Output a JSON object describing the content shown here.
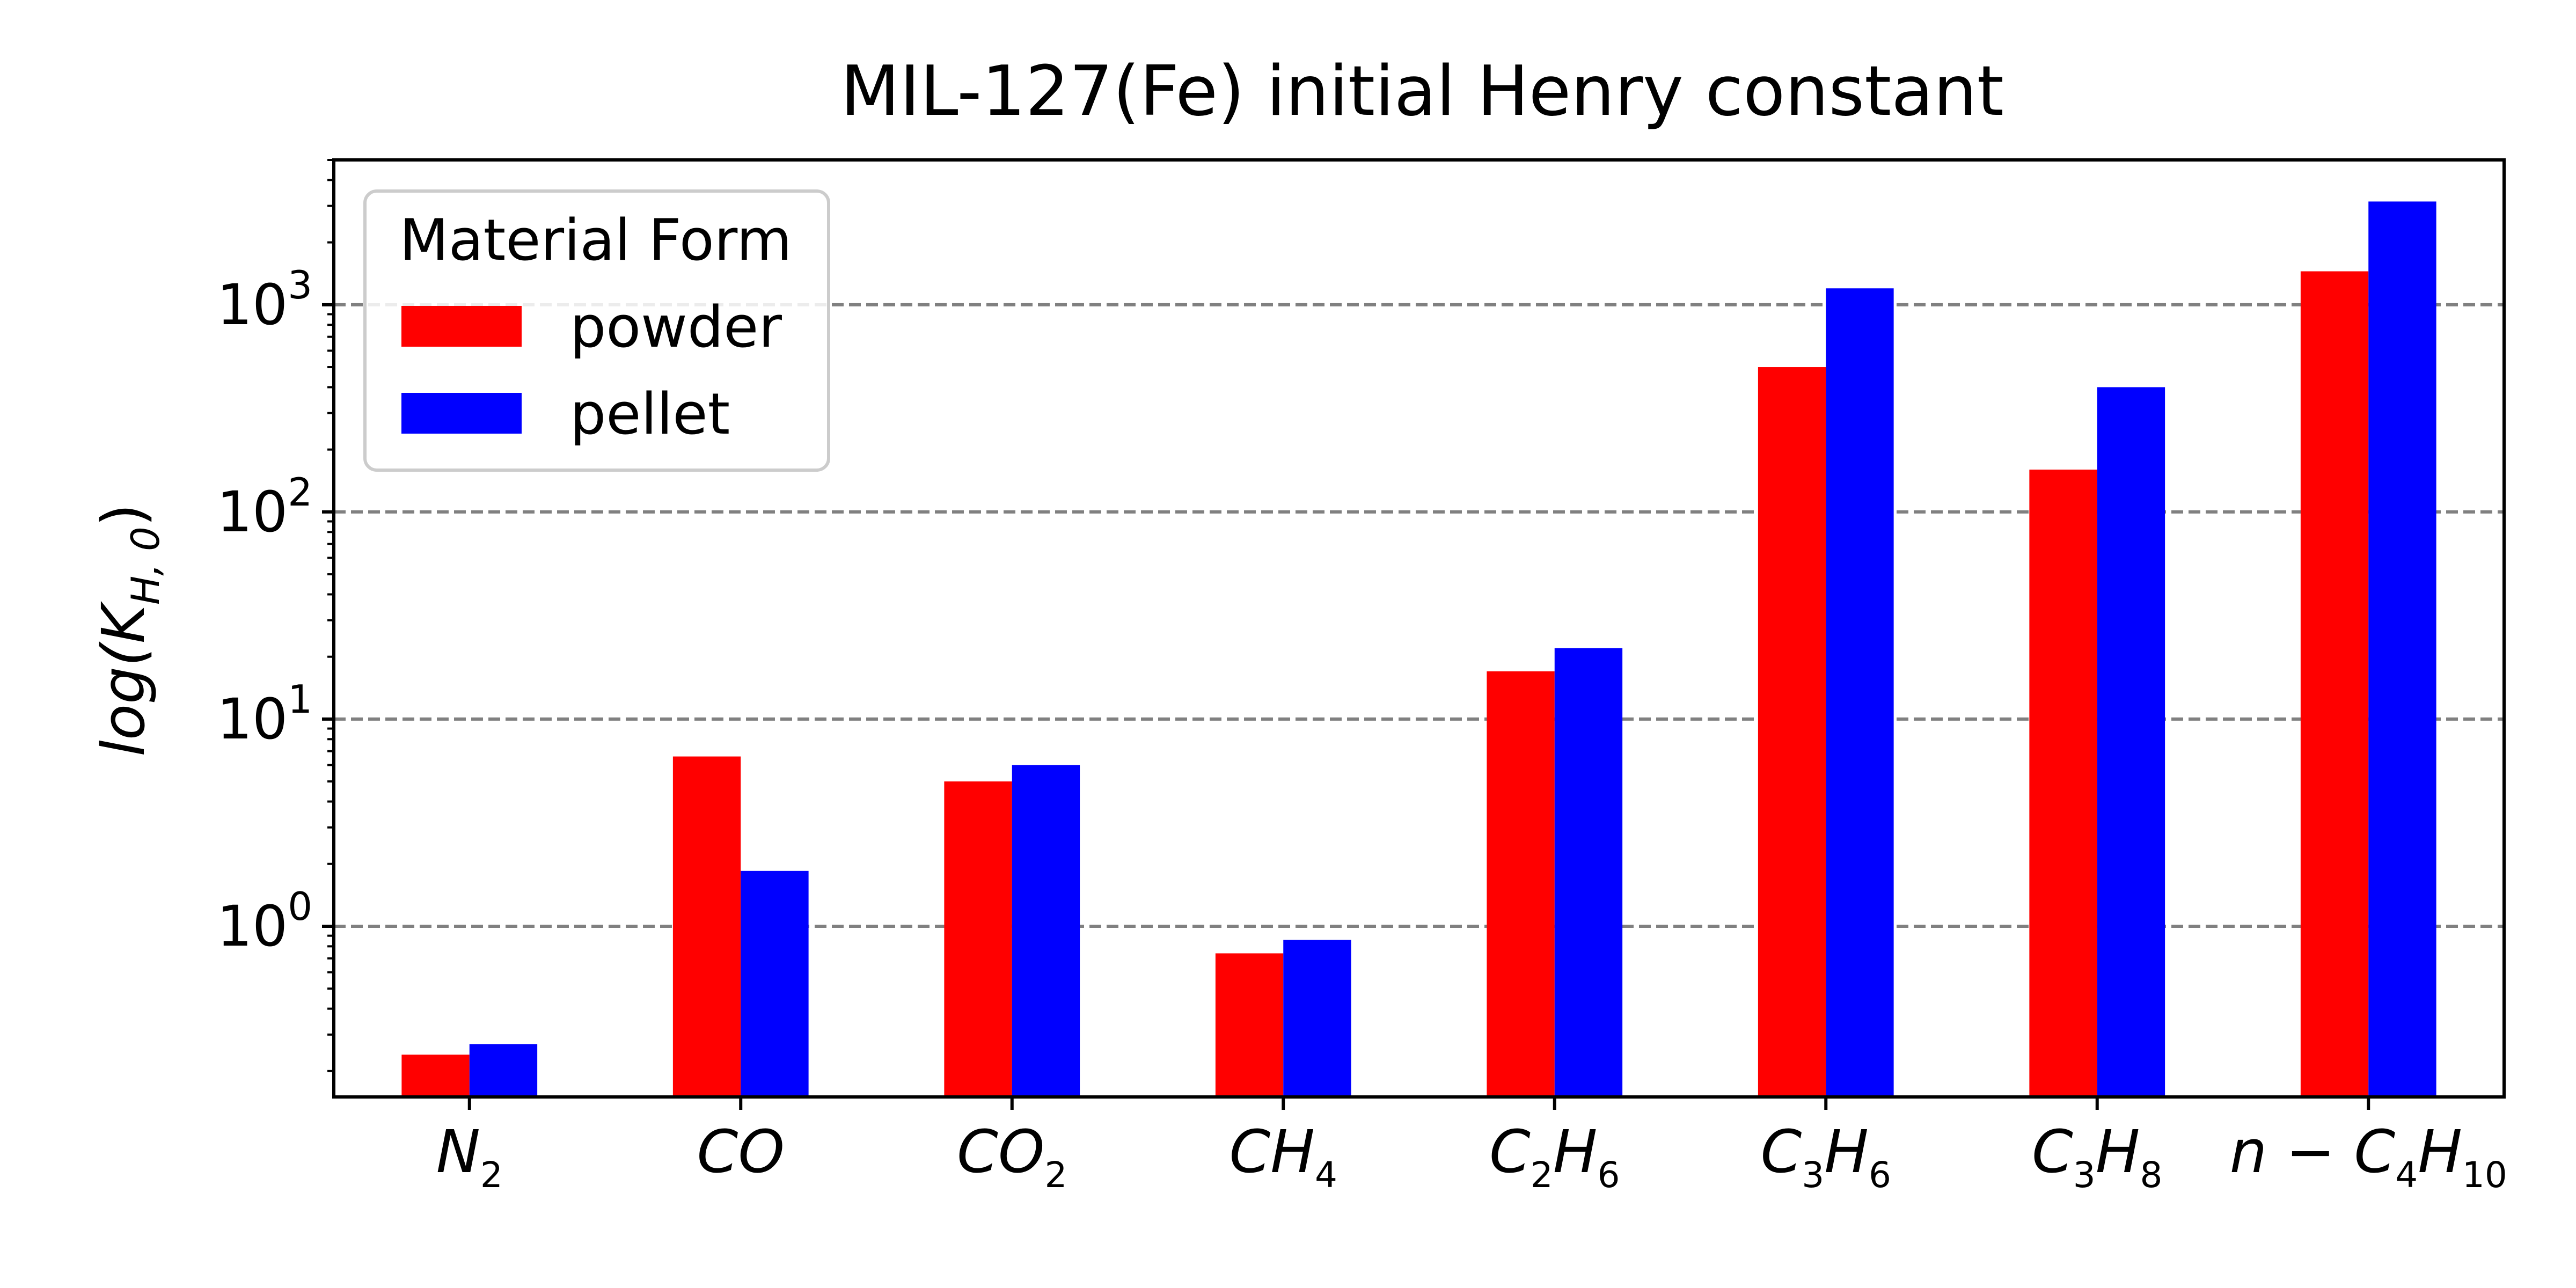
{
  "chart_data": {
    "type": "bar",
    "title": "MIL-127(Fe) initial Henry constant",
    "ylabel": "log(K",
    "ylabel_sub": "H, 0",
    "ylabel_close": ")",
    "yscale": "log",
    "ylim": [
      0.15,
      5000
    ],
    "yticks": [
      {
        "base": "10",
        "exp": "0",
        "value": 1
      },
      {
        "base": "10",
        "exp": "1",
        "value": 10
      },
      {
        "base": "10",
        "exp": "2",
        "value": 100
      },
      {
        "base": "10",
        "exp": "3",
        "value": 1000
      }
    ],
    "grid": "horizontal dashed at major ticks",
    "categories": [
      {
        "parts": [
          {
            "t": "N",
            "s": false
          },
          {
            "t": "2",
            "s": true
          }
        ]
      },
      {
        "parts": [
          {
            "t": "CO",
            "s": false
          }
        ]
      },
      {
        "parts": [
          {
            "t": "CO",
            "s": false
          },
          {
            "t": "2",
            "s": true
          }
        ]
      },
      {
        "parts": [
          {
            "t": "CH",
            "s": false
          },
          {
            "t": "4",
            "s": true
          }
        ]
      },
      {
        "parts": [
          {
            "t": "C",
            "s": false
          },
          {
            "t": "2",
            "s": true
          },
          {
            "t": "H",
            "s": false
          },
          {
            "t": "6",
            "s": true
          }
        ]
      },
      {
        "parts": [
          {
            "t": "C",
            "s": false
          },
          {
            "t": "3",
            "s": true
          },
          {
            "t": "H",
            "s": false
          },
          {
            "t": "6",
            "s": true
          }
        ]
      },
      {
        "parts": [
          {
            "t": "C",
            "s": false
          },
          {
            "t": "3",
            "s": true
          },
          {
            "t": "H",
            "s": false
          },
          {
            "t": "8",
            "s": true
          }
        ]
      },
      {
        "parts": [
          {
            "t": "n − C",
            "s": false
          },
          {
            "t": "4",
            "s": true
          },
          {
            "t": "H",
            "s": false
          },
          {
            "t": "10",
            "s": true
          }
        ]
      }
    ],
    "legend": {
      "title": "Material Form",
      "placement": "top-left"
    },
    "series": [
      {
        "name": "powder",
        "color": "#ff0000",
        "values": [
          0.24,
          6.6,
          5.0,
          0.74,
          17,
          500,
          160,
          1450
        ]
      },
      {
        "name": "pellet",
        "color": "#0000ff",
        "values": [
          0.27,
          1.85,
          6.0,
          0.86,
          22,
          1200,
          400,
          3150
        ]
      }
    ]
  }
}
